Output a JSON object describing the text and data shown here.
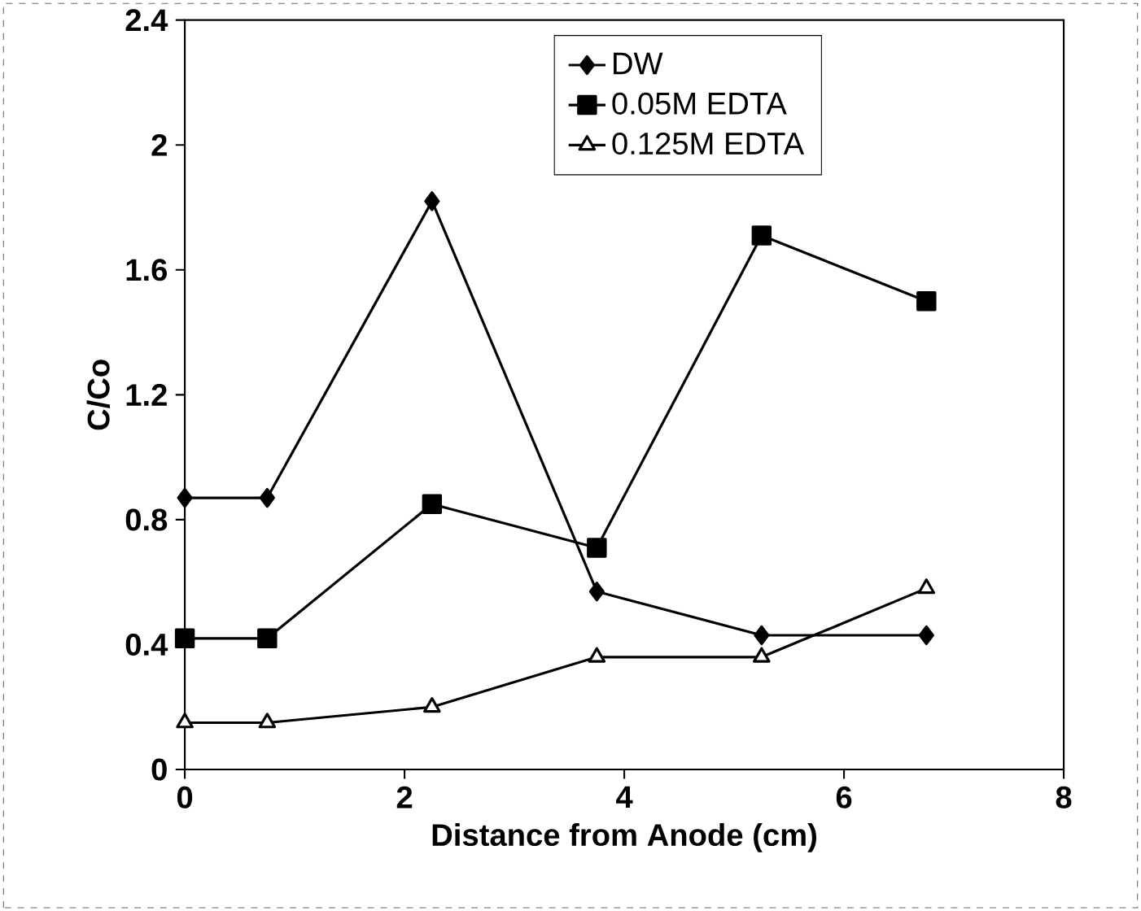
{
  "chart_data": {
    "type": "line",
    "xlabel": "Distance from Anode (cm)",
    "ylabel": "C/Co",
    "x": [
      0,
      0.75,
      2.25,
      3.75,
      5.25,
      6.75
    ],
    "series": [
      {
        "name": "DW",
        "color": "#000000",
        "marker": "diamond",
        "values": [
          0.87,
          0.87,
          1.82,
          0.57,
          0.43,
          0.43
        ]
      },
      {
        "name": "0.05M EDTA",
        "color": "#000000",
        "marker": "square",
        "values": [
          0.42,
          0.42,
          0.85,
          0.71,
          1.71,
          1.5
        ]
      },
      {
        "name": "0.125M EDTA",
        "color": "#000000",
        "marker": "triangle",
        "values": [
          0.15,
          0.15,
          0.2,
          0.36,
          0.36,
          0.58
        ]
      }
    ],
    "xlim": [
      0,
      8
    ],
    "xticks": [
      0,
      2,
      4,
      6,
      8
    ],
    "ylim": [
      0,
      2.4
    ],
    "yticks": [
      0,
      0.4,
      0.8,
      1.2,
      1.6,
      2,
      2.4
    ],
    "grid": false,
    "legend": "top right",
    "line_style": "solid"
  }
}
